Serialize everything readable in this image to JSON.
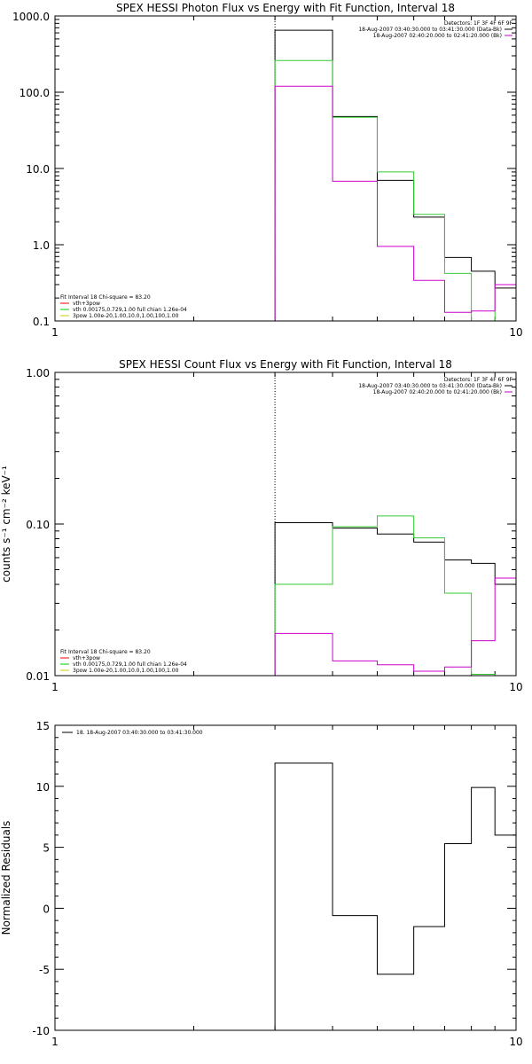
{
  "chart_data": [
    {
      "type": "line",
      "title": "SPEX HESSI Photon Flux vs Energy with Fit Function, Interval 18",
      "ylabel": "",
      "xlabel": "",
      "x_scale": "log",
      "y_scale": "log",
      "xlim": [
        1,
        10
      ],
      "ylim": [
        0.1,
        1000
      ],
      "x_ticks": [
        1,
        10
      ],
      "x_tick_labels": [
        "1",
        "10"
      ],
      "y_ticks": [
        0.1,
        1,
        10,
        100,
        1000
      ],
      "y_tick_labels": [
        "0.1",
        "1.0",
        "10.0",
        "100.0",
        "1000.0"
      ],
      "bin_edges": [
        3,
        4,
        5,
        6,
        7,
        8,
        9,
        10
      ],
      "dotted_vline_x": 3,
      "legend_top": [
        {
          "text": "Detectors: 1F 3F 4F 6F 9F",
          "color": ""
        },
        {
          "text": "18-Aug-2007 03:40:30.000 to 03:41:30.000 (Data-Bk)",
          "color": "#000000"
        },
        {
          "text": "18-Aug-2007 02:40:20.000 to 02:41:20.000 (Bk)",
          "color": "#cc00cc"
        }
      ],
      "legend_bottom": [
        {
          "text": "Fit Interval 18    Chi-square = 83.20",
          "color": ""
        },
        {
          "text": "vth+3pow",
          "color": "#ff0000"
        },
        {
          "text": "vth 0.00175,0.729,1.00   full chian 1.26e-04",
          "color": "#00cc00"
        },
        {
          "text": "3pow 1.00e-20,1.00,10.0,1.00,100,1.00",
          "color": "#cccc00"
        }
      ],
      "series": [
        {
          "color": "#000000",
          "values": [
            650,
            48,
            7,
            2.3,
            0.68,
            0.45,
            0.27
          ]
        },
        {
          "color": "#33cc33",
          "values": [
            260,
            47,
            9,
            2.5,
            0.42,
            0.06,
            0.3
          ]
        },
        {
          "color": "#cc00cc",
          "values": [
            120,
            6.8,
            0.95,
            0.34,
            0.13,
            0.135,
            0.3
          ]
        }
      ]
    },
    {
      "type": "line",
      "title": "SPEX HESSI Count Flux vs Energy with Fit Function, Interval 18",
      "ylabel": "counts s⁻¹ cm⁻² keV⁻¹",
      "xlabel": "",
      "x_scale": "log",
      "y_scale": "log",
      "xlim": [
        1,
        10
      ],
      "ylim": [
        0.01,
        1
      ],
      "x_ticks": [
        1,
        10
      ],
      "x_tick_labels": [
        "1",
        "10"
      ],
      "y_ticks": [
        0.01,
        0.1,
        1
      ],
      "y_tick_labels": [
        "0.01",
        "0.10",
        "1.00"
      ],
      "bin_edges": [
        3,
        4,
        5,
        6,
        7,
        8,
        9,
        10
      ],
      "dotted_vline_x": 3,
      "legend_top": [
        {
          "text": "Detectors: 1F 3F 4F 6F 9F",
          "color": ""
        },
        {
          "text": "18-Aug-2007 03:40:30.000 to 03:41:30.000 (Data-Bk)",
          "color": "#000000"
        },
        {
          "text": "18-Aug-2007 02:40:20.000 to 02:41:20.000 (Bk)",
          "color": "#cc00cc"
        }
      ],
      "legend_bottom": [
        {
          "text": "Fit Interval 18    Chi-square = 83.20",
          "color": ""
        },
        {
          "text": "vth+3pow",
          "color": "#ff0000"
        },
        {
          "text": "vth 0.00175,0.729,1.00   full chian 1.26e-04",
          "color": "#00cc00"
        },
        {
          "text": "3pow 1.00e-20,1.00,10.0,1.00,100,1.00",
          "color": "#cccc00"
        }
      ],
      "series": [
        {
          "color": "#000000",
          "values": [
            0.102,
            0.094,
            0.086,
            0.076,
            0.058,
            0.055,
            0.04
          ]
        },
        {
          "color": "#33cc33",
          "values": [
            0.04,
            0.096,
            0.113,
            0.081,
            0.035,
            0.0102,
            0.001
          ]
        },
        {
          "color": "#cc00cc",
          "values": [
            0.019,
            0.0125,
            0.0118,
            0.0107,
            0.0114,
            0.017,
            0.044
          ]
        }
      ]
    },
    {
      "type": "line",
      "title": "",
      "ylabel": "Normalized Residuals",
      "xlabel": "",
      "x_scale": "log",
      "y_scale": "linear",
      "xlim": [
        1,
        10
      ],
      "ylim": [
        -10,
        15
      ],
      "x_ticks": [
        1,
        10
      ],
      "x_tick_labels": [
        "1",
        "10"
      ],
      "y_ticks": [
        -10,
        -5,
        0,
        5,
        10,
        15
      ],
      "y_tick_labels": [
        "-10",
        "-5",
        "0",
        "5",
        "10",
        "15"
      ],
      "bin_edges": [
        3,
        4,
        5,
        6,
        7,
        8,
        9,
        10
      ],
      "dotted_vline_x": null,
      "legend_top": [
        {
          "text": "18. 18-Aug-2007 03:40:30.000 to 03:41:30.000",
          "color": "#000000"
        }
      ],
      "legend_bottom": [],
      "series": [
        {
          "color": "#000000",
          "values": [
            11.9,
            -0.6,
            -5.4,
            -1.5,
            5.3,
            9.9,
            6.0
          ]
        }
      ]
    }
  ]
}
